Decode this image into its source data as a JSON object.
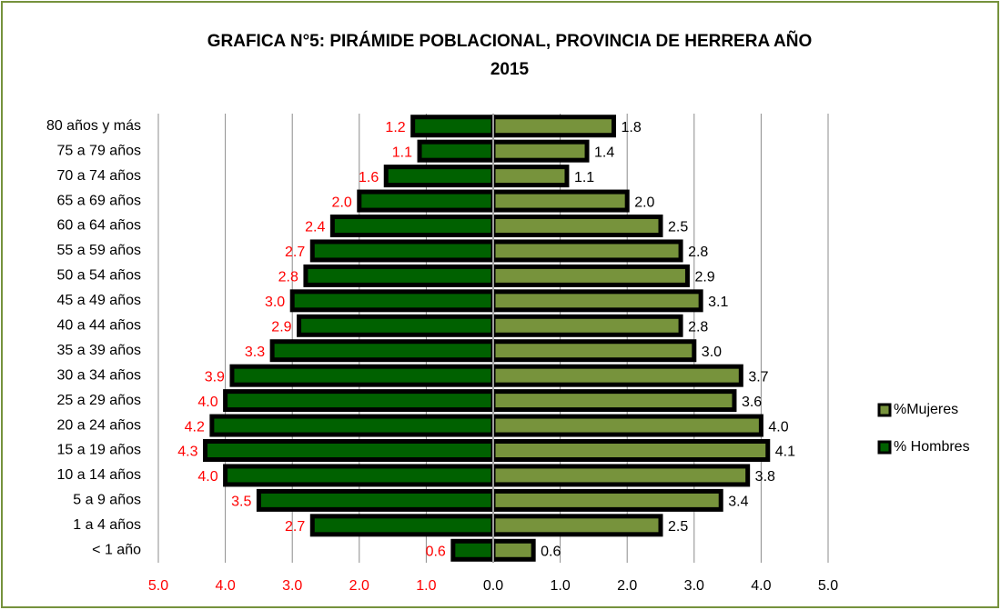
{
  "chart_data": {
    "type": "pyramid",
    "title": [
      "GRAFICA N°5: PIRÁMIDE POBLACIONAL, PROVINCIA DE HERRERA AÑO",
      "2015"
    ],
    "categories": [
      "80 años y más",
      "75 a 79 años",
      "70 a 74 años",
      "65 a 69 años",
      "60 a 64 años",
      "55 a 59 años",
      "50 a 54 años",
      "45 a 49 años",
      "40 a 44 años",
      "35 a 39 años",
      "30 a 34 años",
      "25 a 29 años",
      "20 a 24 años",
      "15 a 19 años",
      "10 a 14 años",
      "5 a 9 años",
      "1 a 4 años",
      "< 1 año"
    ],
    "series": [
      {
        "name": "%Mujeres",
        "color": "#77933c",
        "label_color": "#000000",
        "values": [
          1.8,
          1.4,
          1.1,
          2.0,
          2.5,
          2.8,
          2.9,
          3.1,
          2.8,
          3.0,
          3.7,
          3.6,
          4.0,
          4.1,
          3.8,
          3.4,
          2.5,
          0.6
        ],
        "value_labels": [
          "1.8",
          "1.4",
          "1.1",
          "2.0",
          "2.5",
          "2.8",
          "2.9",
          "3.1",
          "2.8",
          "3.0",
          "3.7",
          "3.6",
          "4.0",
          "4.1",
          "3.8",
          "3.4",
          "2.5",
          "0.6"
        ]
      },
      {
        "name": "% Hombres",
        "color": "#006100",
        "label_color": "#ff0000",
        "values": [
          1.2,
          1.1,
          1.6,
          2.0,
          2.4,
          2.7,
          2.8,
          3.0,
          2.9,
          3.3,
          3.9,
          4.0,
          4.2,
          4.3,
          4.0,
          3.5,
          2.7,
          0.6
        ],
        "value_labels": [
          "1.2",
          "1.1",
          "1.6",
          "2.0",
          "2.4",
          "2.7",
          "2.8",
          "3.0",
          "2.9",
          "3.3",
          "3.9",
          "4.0",
          "4.2",
          "4.3",
          "4.0",
          "3.5",
          "2.7",
          "0.6"
        ]
      }
    ],
    "xlim": [
      -5,
      5
    ],
    "xticks": [
      {
        "value": -5,
        "label": "5.0"
      },
      {
        "value": -4,
        "label": "4.0"
      },
      {
        "value": -3,
        "label": "3.0"
      },
      {
        "value": -2,
        "label": "2.0"
      },
      {
        "value": -1,
        "label": "1.0"
      },
      {
        "value": 0,
        "label": "0.0"
      },
      {
        "value": 1,
        "label": "1.0"
      },
      {
        "value": 2,
        "label": "2.0"
      },
      {
        "value": 3,
        "label": "3.0"
      },
      {
        "value": 4,
        "label": "4.0"
      },
      {
        "value": 5,
        "label": "5.0"
      }
    ],
    "grid": true,
    "legend": "right"
  }
}
